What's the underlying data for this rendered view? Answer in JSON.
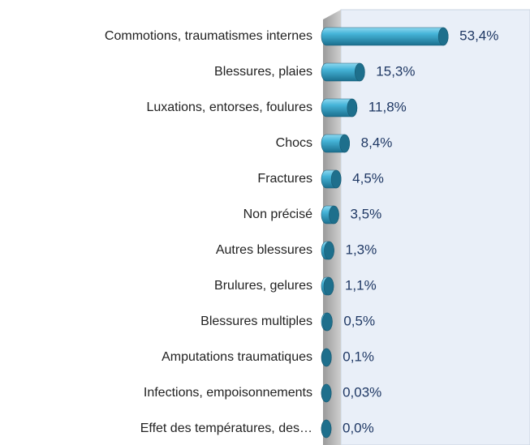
{
  "chart_data": {
    "type": "bar",
    "orientation": "horizontal",
    "categories": [
      "Commotions, traumatismes internes",
      "Blessures, plaies",
      "Luxations, entorses, foulures",
      "Chocs",
      "Fractures",
      "Non précisé",
      "Autres blessures",
      "Brulures, gelures",
      "Blessures multiples",
      "Amputations traumatiques",
      "Infections, empoisonnements",
      "Effet des températures, des…"
    ],
    "values": [
      53.4,
      15.3,
      11.8,
      8.4,
      4.5,
      3.5,
      1.3,
      1.1,
      0.5,
      0.1,
      0.03,
      0.0
    ],
    "value_labels": [
      "53,4%",
      "15,3%",
      "11,8%",
      "8,4%",
      "4,5%",
      "3,5%",
      "1,3%",
      "1,1%",
      "0,5%",
      "0,1%",
      "0,03%",
      "0,0%"
    ],
    "color": "#3aa6c9",
    "xlim": [
      0,
      90
    ]
  }
}
